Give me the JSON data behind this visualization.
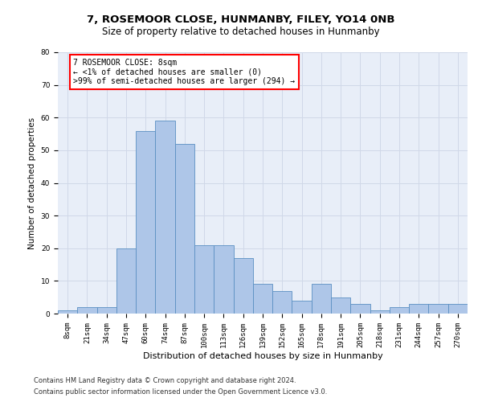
{
  "title1": "7, ROSEMOOR CLOSE, HUNMANBY, FILEY, YO14 0NB",
  "title2": "Size of property relative to detached houses in Hunmanby",
  "xlabel": "Distribution of detached houses by size in Hunmanby",
  "ylabel": "Number of detached properties",
  "categories": [
    "8sqm",
    "21sqm",
    "34sqm",
    "47sqm",
    "60sqm",
    "74sqm",
    "87sqm",
    "100sqm",
    "113sqm",
    "126sqm",
    "139sqm",
    "152sqm",
    "165sqm",
    "178sqm",
    "191sqm",
    "205sqm",
    "218sqm",
    "231sqm",
    "244sqm",
    "257sqm",
    "270sqm"
  ],
  "values": [
    1,
    2,
    2,
    20,
    56,
    59,
    52,
    21,
    21,
    17,
    9,
    7,
    4,
    9,
    5,
    3,
    1,
    2,
    3,
    3,
    3
  ],
  "bar_color": "#aec6e8",
  "bar_edge_color": "#5a8fc2",
  "annotation_box_text": "7 ROSEMOOR CLOSE: 8sqm\n← <1% of detached houses are smaller (0)\n>99% of semi-detached houses are larger (294) →",
  "annotation_box_color": "white",
  "annotation_box_edge_color": "red",
  "ylim": [
    0,
    80
  ],
  "yticks": [
    0,
    10,
    20,
    30,
    40,
    50,
    60,
    70,
    80
  ],
  "grid_color": "#d0d8e8",
  "background_color": "#e8eef8",
  "footer1": "Contains HM Land Registry data © Crown copyright and database right 2024.",
  "footer2": "Contains public sector information licensed under the Open Government Licence v3.0.",
  "title1_fontsize": 9.5,
  "title2_fontsize": 8.5,
  "xlabel_fontsize": 8,
  "ylabel_fontsize": 7.5,
  "tick_fontsize": 6.5,
  "annotation_fontsize": 7,
  "footer_fontsize": 6
}
